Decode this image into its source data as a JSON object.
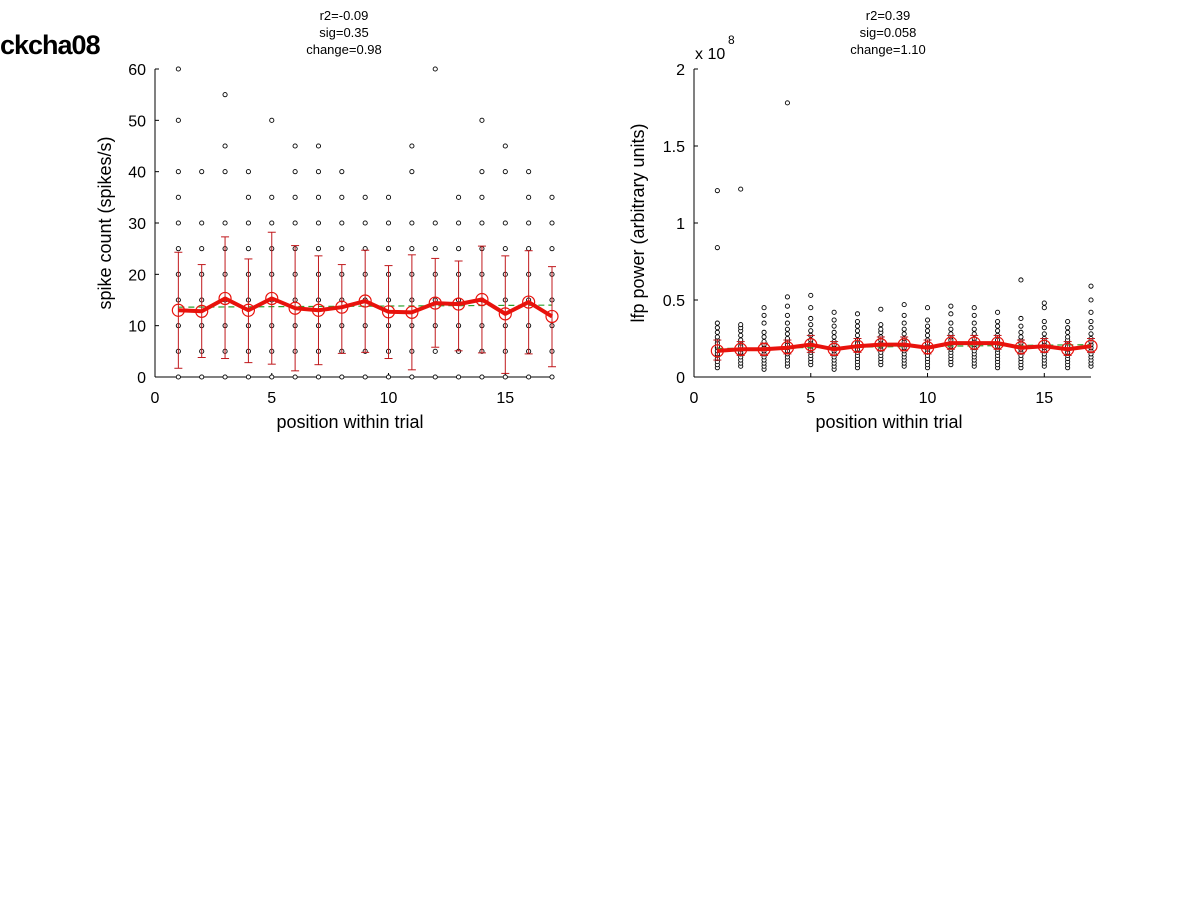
{
  "page_label": "ckcha08",
  "chart_data": [
    {
      "type": "scatter",
      "title_lines": [
        "r2=-0.09",
        "sig=0.35",
        "change=0.98"
      ],
      "xlabel": "position within trial",
      "ylabel": "spike count (spikes/s)",
      "xlim": [
        0,
        17
      ],
      "ylim": [
        0,
        60
      ],
      "xticks": [
        0,
        5,
        10,
        15
      ],
      "yticks": [
        0,
        10,
        20,
        30,
        40,
        50,
        60
      ],
      "ytick_labels": [
        "0",
        "10",
        "20",
        "30",
        "40",
        "50",
        "60"
      ],
      "exponent_label": "",
      "grid": false,
      "colors": {
        "points": "#000000",
        "mean_line": "#e8120c",
        "error_bars": "#c0181c",
        "fit_line": "#2ca02c"
      },
      "points": [
        {
          "x": 1,
          "ys": [
            0,
            5,
            10,
            15,
            20,
            25,
            30,
            35,
            40,
            50,
            60
          ]
        },
        {
          "x": 2,
          "ys": [
            0,
            5,
            10,
            15,
            20,
            25,
            30,
            40
          ]
        },
        {
          "x": 3,
          "ys": [
            0,
            5,
            10,
            15,
            20,
            25,
            30,
            40,
            45,
            55
          ]
        },
        {
          "x": 4,
          "ys": [
            0,
            5,
            10,
            15,
            20,
            25,
            30,
            35,
            40
          ]
        },
        {
          "x": 5,
          "ys": [
            0,
            5,
            10,
            15,
            20,
            25,
            30,
            35,
            50
          ]
        },
        {
          "x": 6,
          "ys": [
            0,
            5,
            10,
            15,
            20,
            25,
            30,
            35,
            40,
            45
          ]
        },
        {
          "x": 7,
          "ys": [
            0,
            5,
            10,
            15,
            20,
            25,
            30,
            35,
            40,
            45
          ]
        },
        {
          "x": 8,
          "ys": [
            0,
            5,
            10,
            15,
            20,
            25,
            30,
            35,
            40
          ]
        },
        {
          "x": 9,
          "ys": [
            0,
            5,
            10,
            15,
            20,
            25,
            30,
            35
          ]
        },
        {
          "x": 10,
          "ys": [
            0,
            5,
            10,
            15,
            20,
            25,
            30,
            35
          ]
        },
        {
          "x": 11,
          "ys": [
            0,
            5,
            10,
            15,
            20,
            25,
            30,
            40,
            45
          ]
        },
        {
          "x": 12,
          "ys": [
            0,
            5,
            10,
            15,
            20,
            25,
            30,
            60
          ]
        },
        {
          "x": 13,
          "ys": [
            0,
            5,
            10,
            15,
            20,
            25,
            30,
            35
          ]
        },
        {
          "x": 14,
          "ys": [
            0,
            5,
            10,
            15,
            20,
            25,
            30,
            35,
            40,
            50
          ]
        },
        {
          "x": 15,
          "ys": [
            0,
            5,
            10,
            15,
            20,
            25,
            30,
            40,
            45
          ]
        },
        {
          "x": 16,
          "ys": [
            0,
            5,
            10,
            15,
            20,
            25,
            30,
            35,
            40
          ]
        },
        {
          "x": 17,
          "ys": [
            0,
            5,
            10,
            15,
            20,
            25,
            30,
            35
          ]
        }
      ],
      "mean": {
        "x": [
          1,
          2,
          3,
          4,
          5,
          6,
          7,
          8,
          9,
          10,
          11,
          12,
          13,
          14,
          15,
          16,
          17
        ],
        "y": [
          13.0,
          12.8,
          15.3,
          13.0,
          15.3,
          13.4,
          13.0,
          13.6,
          14.8,
          12.7,
          12.6,
          14.4,
          14.2,
          15.1,
          12.3,
          14.6,
          11.8
        ],
        "err_low": [
          1.7,
          3.8,
          3.6,
          2.8,
          2.5,
          1.2,
          2.4,
          4.6,
          4.8,
          3.6,
          1.4,
          5.8,
          5.1,
          4.7,
          0.7,
          4.5,
          2.0
        ],
        "err_high": [
          24.3,
          21.9,
          27.3,
          23.0,
          28.2,
          25.6,
          23.6,
          21.9,
          24.7,
          21.7,
          23.8,
          23.1,
          22.6,
          25.5,
          23.6,
          24.6,
          21.5
        ]
      },
      "fit": {
        "x": [
          1,
          17
        ],
        "y": [
          13.6,
          14.0
        ]
      }
    },
    {
      "type": "scatter",
      "title_lines": [
        "r2=0.39",
        "sig=0.058",
        "change=1.10"
      ],
      "xlabel": "position within trial",
      "ylabel": "lfp power (arbitrary units)",
      "xlim": [
        0,
        17
      ],
      "ylim": [
        0,
        2
      ],
      "xticks": [
        0,
        5,
        10,
        15
      ],
      "yticks": [
        0,
        0.5,
        1,
        1.5,
        2
      ],
      "ytick_labels": [
        "0",
        "0.5",
        "1",
        "1.5",
        "2"
      ],
      "exponent_label": "x 10",
      "exponent_power": "8",
      "grid": false,
      "colors": {
        "points": "#000000",
        "mean_line": "#e8120c",
        "error_bars": "#c0181c",
        "fit_line": "#2ca02c"
      },
      "points": [
        {
          "x": 1,
          "ys": [
            0.06,
            0.08,
            0.1,
            0.12,
            0.14,
            0.15,
            0.17,
            0.19,
            0.2,
            0.22,
            0.24,
            0.26,
            0.29,
            0.32,
            0.35,
            0.84,
            1.21
          ]
        },
        {
          "x": 2,
          "ys": [
            0.07,
            0.09,
            0.11,
            0.13,
            0.15,
            0.16,
            0.18,
            0.2,
            0.22,
            0.24,
            0.27,
            0.3,
            0.32,
            0.34,
            1.22
          ]
        },
        {
          "x": 3,
          "ys": [
            0.05,
            0.07,
            0.09,
            0.11,
            0.13,
            0.15,
            0.17,
            0.19,
            0.21,
            0.23,
            0.26,
            0.29,
            0.35,
            0.4,
            0.45
          ]
        },
        {
          "x": 4,
          "ys": [
            0.07,
            0.09,
            0.11,
            0.13,
            0.15,
            0.17,
            0.19,
            0.21,
            0.23,
            0.25,
            0.28,
            0.31,
            0.35,
            0.4,
            0.46,
            0.52,
            1.78
          ]
        },
        {
          "x": 5,
          "ys": [
            0.08,
            0.1,
            0.12,
            0.14,
            0.16,
            0.18,
            0.2,
            0.22,
            0.24,
            0.27,
            0.3,
            0.34,
            0.38,
            0.45,
            0.53
          ]
        },
        {
          "x": 6,
          "ys": [
            0.05,
            0.07,
            0.09,
            0.11,
            0.13,
            0.15,
            0.17,
            0.19,
            0.21,
            0.23,
            0.26,
            0.29,
            0.33,
            0.37,
            0.42
          ]
        },
        {
          "x": 7,
          "ys": [
            0.06,
            0.08,
            0.1,
            0.12,
            0.14,
            0.16,
            0.18,
            0.2,
            0.22,
            0.24,
            0.27,
            0.3,
            0.33,
            0.36,
            0.41
          ]
        },
        {
          "x": 8,
          "ys": [
            0.08,
            0.1,
            0.12,
            0.14,
            0.16,
            0.18,
            0.2,
            0.22,
            0.24,
            0.26,
            0.29,
            0.31,
            0.34,
            0.44
          ]
        },
        {
          "x": 9,
          "ys": [
            0.07,
            0.09,
            0.11,
            0.13,
            0.15,
            0.17,
            0.19,
            0.21,
            0.23,
            0.25,
            0.28,
            0.31,
            0.35,
            0.4,
            0.47
          ]
        },
        {
          "x": 10,
          "ys": [
            0.06,
            0.08,
            0.1,
            0.12,
            0.14,
            0.16,
            0.18,
            0.2,
            0.22,
            0.24,
            0.27,
            0.3,
            0.33,
            0.37,
            0.45
          ]
        },
        {
          "x": 11,
          "ys": [
            0.08,
            0.1,
            0.12,
            0.14,
            0.16,
            0.18,
            0.2,
            0.22,
            0.24,
            0.26,
            0.28,
            0.31,
            0.35,
            0.41,
            0.46
          ]
        },
        {
          "x": 12,
          "ys": [
            0.07,
            0.09,
            0.11,
            0.13,
            0.15,
            0.17,
            0.19,
            0.21,
            0.23,
            0.25,
            0.28,
            0.31,
            0.35,
            0.4,
            0.45
          ]
        },
        {
          "x": 13,
          "ys": [
            0.06,
            0.08,
            0.1,
            0.12,
            0.14,
            0.16,
            0.18,
            0.2,
            0.22,
            0.24,
            0.27,
            0.3,
            0.33,
            0.36,
            0.42
          ]
        },
        {
          "x": 14,
          "ys": [
            0.06,
            0.08,
            0.1,
            0.12,
            0.14,
            0.16,
            0.18,
            0.2,
            0.22,
            0.24,
            0.26,
            0.29,
            0.33,
            0.38,
            0.63
          ]
        },
        {
          "x": 15,
          "ys": [
            0.07,
            0.09,
            0.11,
            0.13,
            0.15,
            0.17,
            0.19,
            0.21,
            0.23,
            0.25,
            0.28,
            0.32,
            0.36,
            0.45,
            0.48
          ]
        },
        {
          "x": 16,
          "ys": [
            0.06,
            0.08,
            0.1,
            0.12,
            0.14,
            0.16,
            0.18,
            0.2,
            0.22,
            0.24,
            0.26,
            0.29,
            0.32,
            0.36
          ]
        },
        {
          "x": 17,
          "ys": [
            0.07,
            0.09,
            0.11,
            0.13,
            0.15,
            0.17,
            0.19,
            0.21,
            0.23,
            0.25,
            0.28,
            0.32,
            0.36,
            0.42,
            0.5,
            0.59
          ]
        }
      ],
      "mean": {
        "x": [
          1,
          2,
          3,
          4,
          5,
          6,
          7,
          8,
          9,
          10,
          11,
          12,
          13,
          14,
          15,
          16,
          17
        ],
        "y": [
          0.17,
          0.18,
          0.18,
          0.19,
          0.21,
          0.18,
          0.2,
          0.21,
          0.21,
          0.19,
          0.22,
          0.22,
          0.22,
          0.19,
          0.2,
          0.18,
          0.2
        ],
        "err_low": [
          0.11,
          0.14,
          0.14,
          0.15,
          0.16,
          0.14,
          0.16,
          0.17,
          0.17,
          0.15,
          0.18,
          0.18,
          0.18,
          0.15,
          0.16,
          0.14,
          0.16
        ],
        "err_high": [
          0.24,
          0.23,
          0.22,
          0.24,
          0.27,
          0.23,
          0.25,
          0.26,
          0.26,
          0.24,
          0.27,
          0.27,
          0.27,
          0.24,
          0.25,
          0.23,
          0.25
        ]
      },
      "fit": {
        "x": [
          1,
          17
        ],
        "y": [
          0.185,
          0.21
        ]
      }
    }
  ]
}
